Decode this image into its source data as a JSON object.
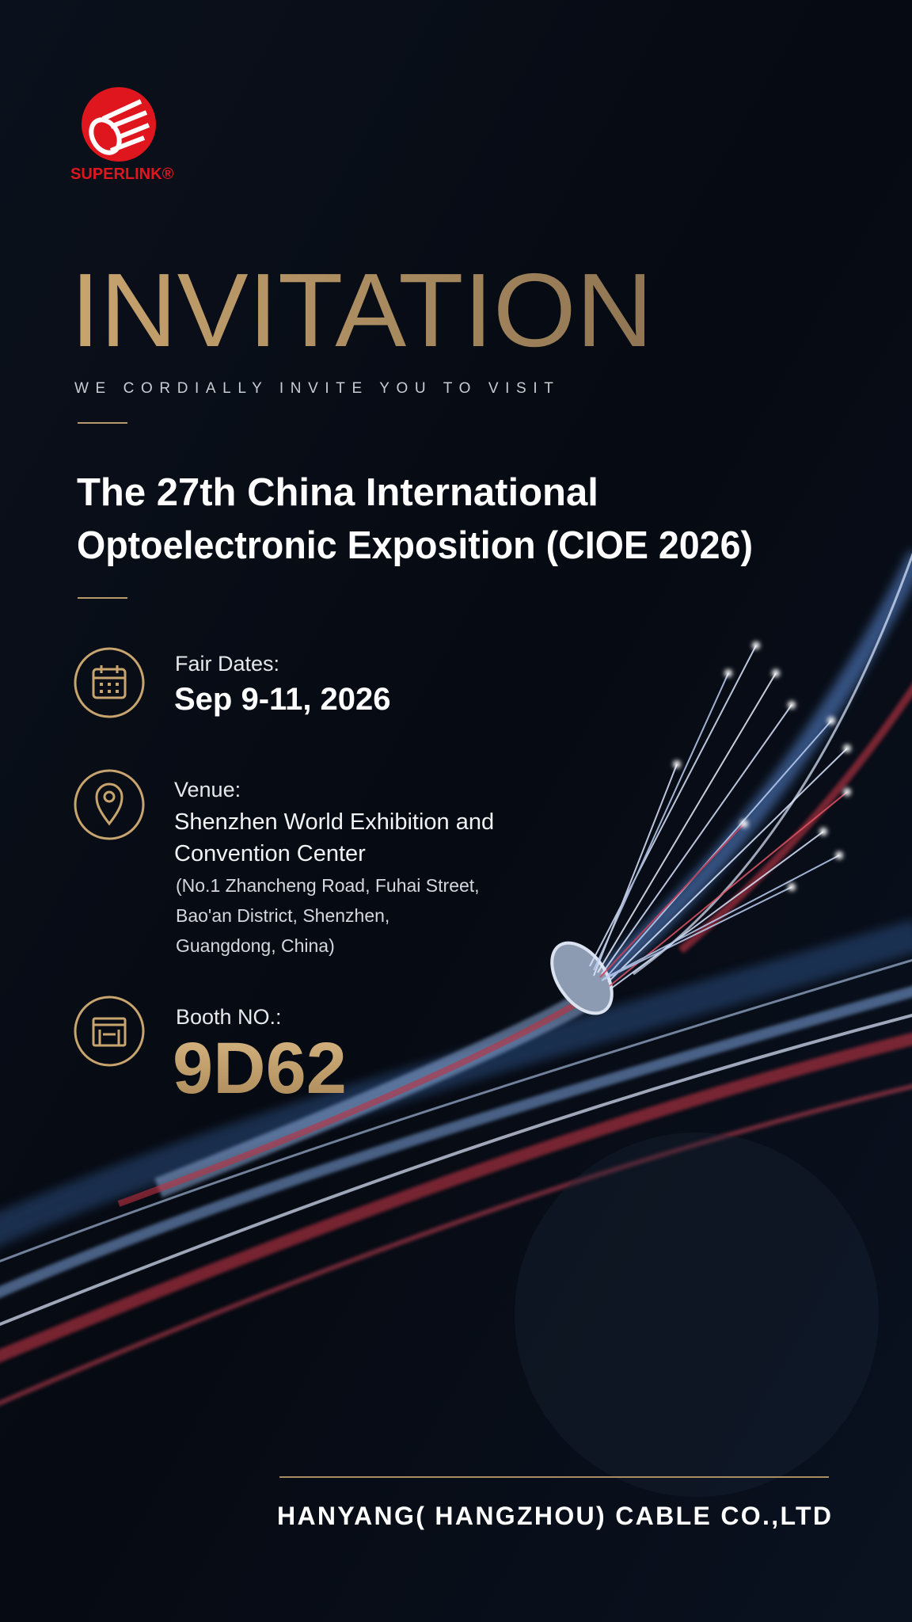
{
  "header": {
    "logo": "SUPERLINK®",
    "title": "INVITATION",
    "subtitle": "WE CORDIALLY INVITE YOU TO VISIT"
  },
  "event": {
    "title_lines": [
      "The 27th China International",
      "Optoelectronic Exposition (CIOE 2026)"
    ]
  },
  "details": [
    {
      "label": "Fair Dates:",
      "lines": [
        "Sep 9-11, 2026"
      ]
    },
    {
      "label": "Venue:",
      "lines": [
        "Shenzhen World Exhibition and",
        "Convention Center"
      ],
      "address": [
        "(No.1 Zhancheng Road, Fuhai Street,",
        "Bao'an District, Shenzhen,",
        "Guangdong, China)"
      ]
    },
    {
      "label": "Booth NO.:",
      "lines": [
        "9D62"
      ]
    }
  ],
  "footer": {
    "company": "HANYANG( HANGZHOU) CABLE CO.,LTD"
  }
}
